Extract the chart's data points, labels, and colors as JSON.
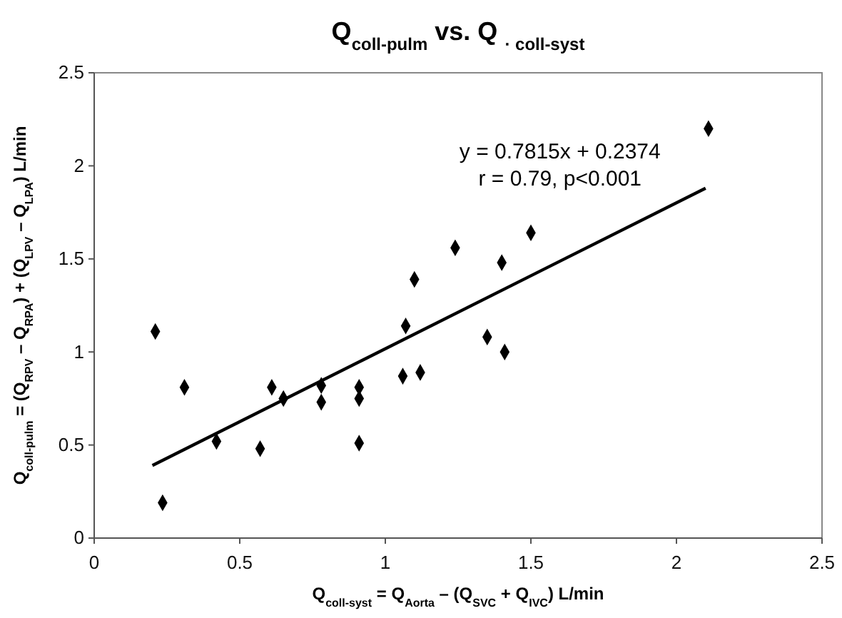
{
  "chart_data": {
    "type": "scatter",
    "title": "Q$_{coll-pulm}$ vs. Q $_{· coll-syst}$",
    "xlabel": "Q$_{coll-syst}$ = Q$_{Aorta}$ – (Q$_{SVC}$ + Q$_{IVC}$)    L/min",
    "ylabel": "Q$_{coll-pulm}$ = (Q$_{RPV}$ – Q$_{RPA}$) + (Q$_{LPV}$ – Q$_{LPA}$)    L/min",
    "annotations": [
      "y = 0.7815x + 0.2374",
      "r = 0.79, p<0.001"
    ],
    "series": [
      {
        "color": "#000000",
        "marker": "diamond",
        "x": [
          0.21,
          0.235,
          0.31,
          0.42,
          0.57,
          0.61,
          0.65,
          0.78,
          0.78,
          0.91,
          0.91,
          0.91,
          1.06,
          1.07,
          1.1,
          1.12,
          1.24,
          1.35,
          1.4,
          1.41,
          1.5,
          2.11
        ],
        "values": [
          1.11,
          0.19,
          0.81,
          0.52,
          0.48,
          0.81,
          0.75,
          0.82,
          0.73,
          0.81,
          0.75,
          0.51,
          0.87,
          1.14,
          1.39,
          0.89,
          1.56,
          1.08,
          1.48,
          1.0,
          1.64,
          2.2
        ]
      },
      {
        "type": "line",
        "color": "#000000",
        "marker": "none",
        "x": [
          0.2,
          2.1
        ],
        "values": [
          0.39,
          1.88
        ]
      }
    ],
    "xlim": [
      0,
      2.5
    ],
    "ylim": [
      0,
      2.5
    ],
    "xticks": [
      0,
      0.5,
      1,
      1.5,
      2,
      2.5
    ],
    "yticks": [
      0,
      0.5,
      1,
      1.5,
      2,
      2.5
    ],
    "grid": false,
    "line_style": "solid"
  }
}
